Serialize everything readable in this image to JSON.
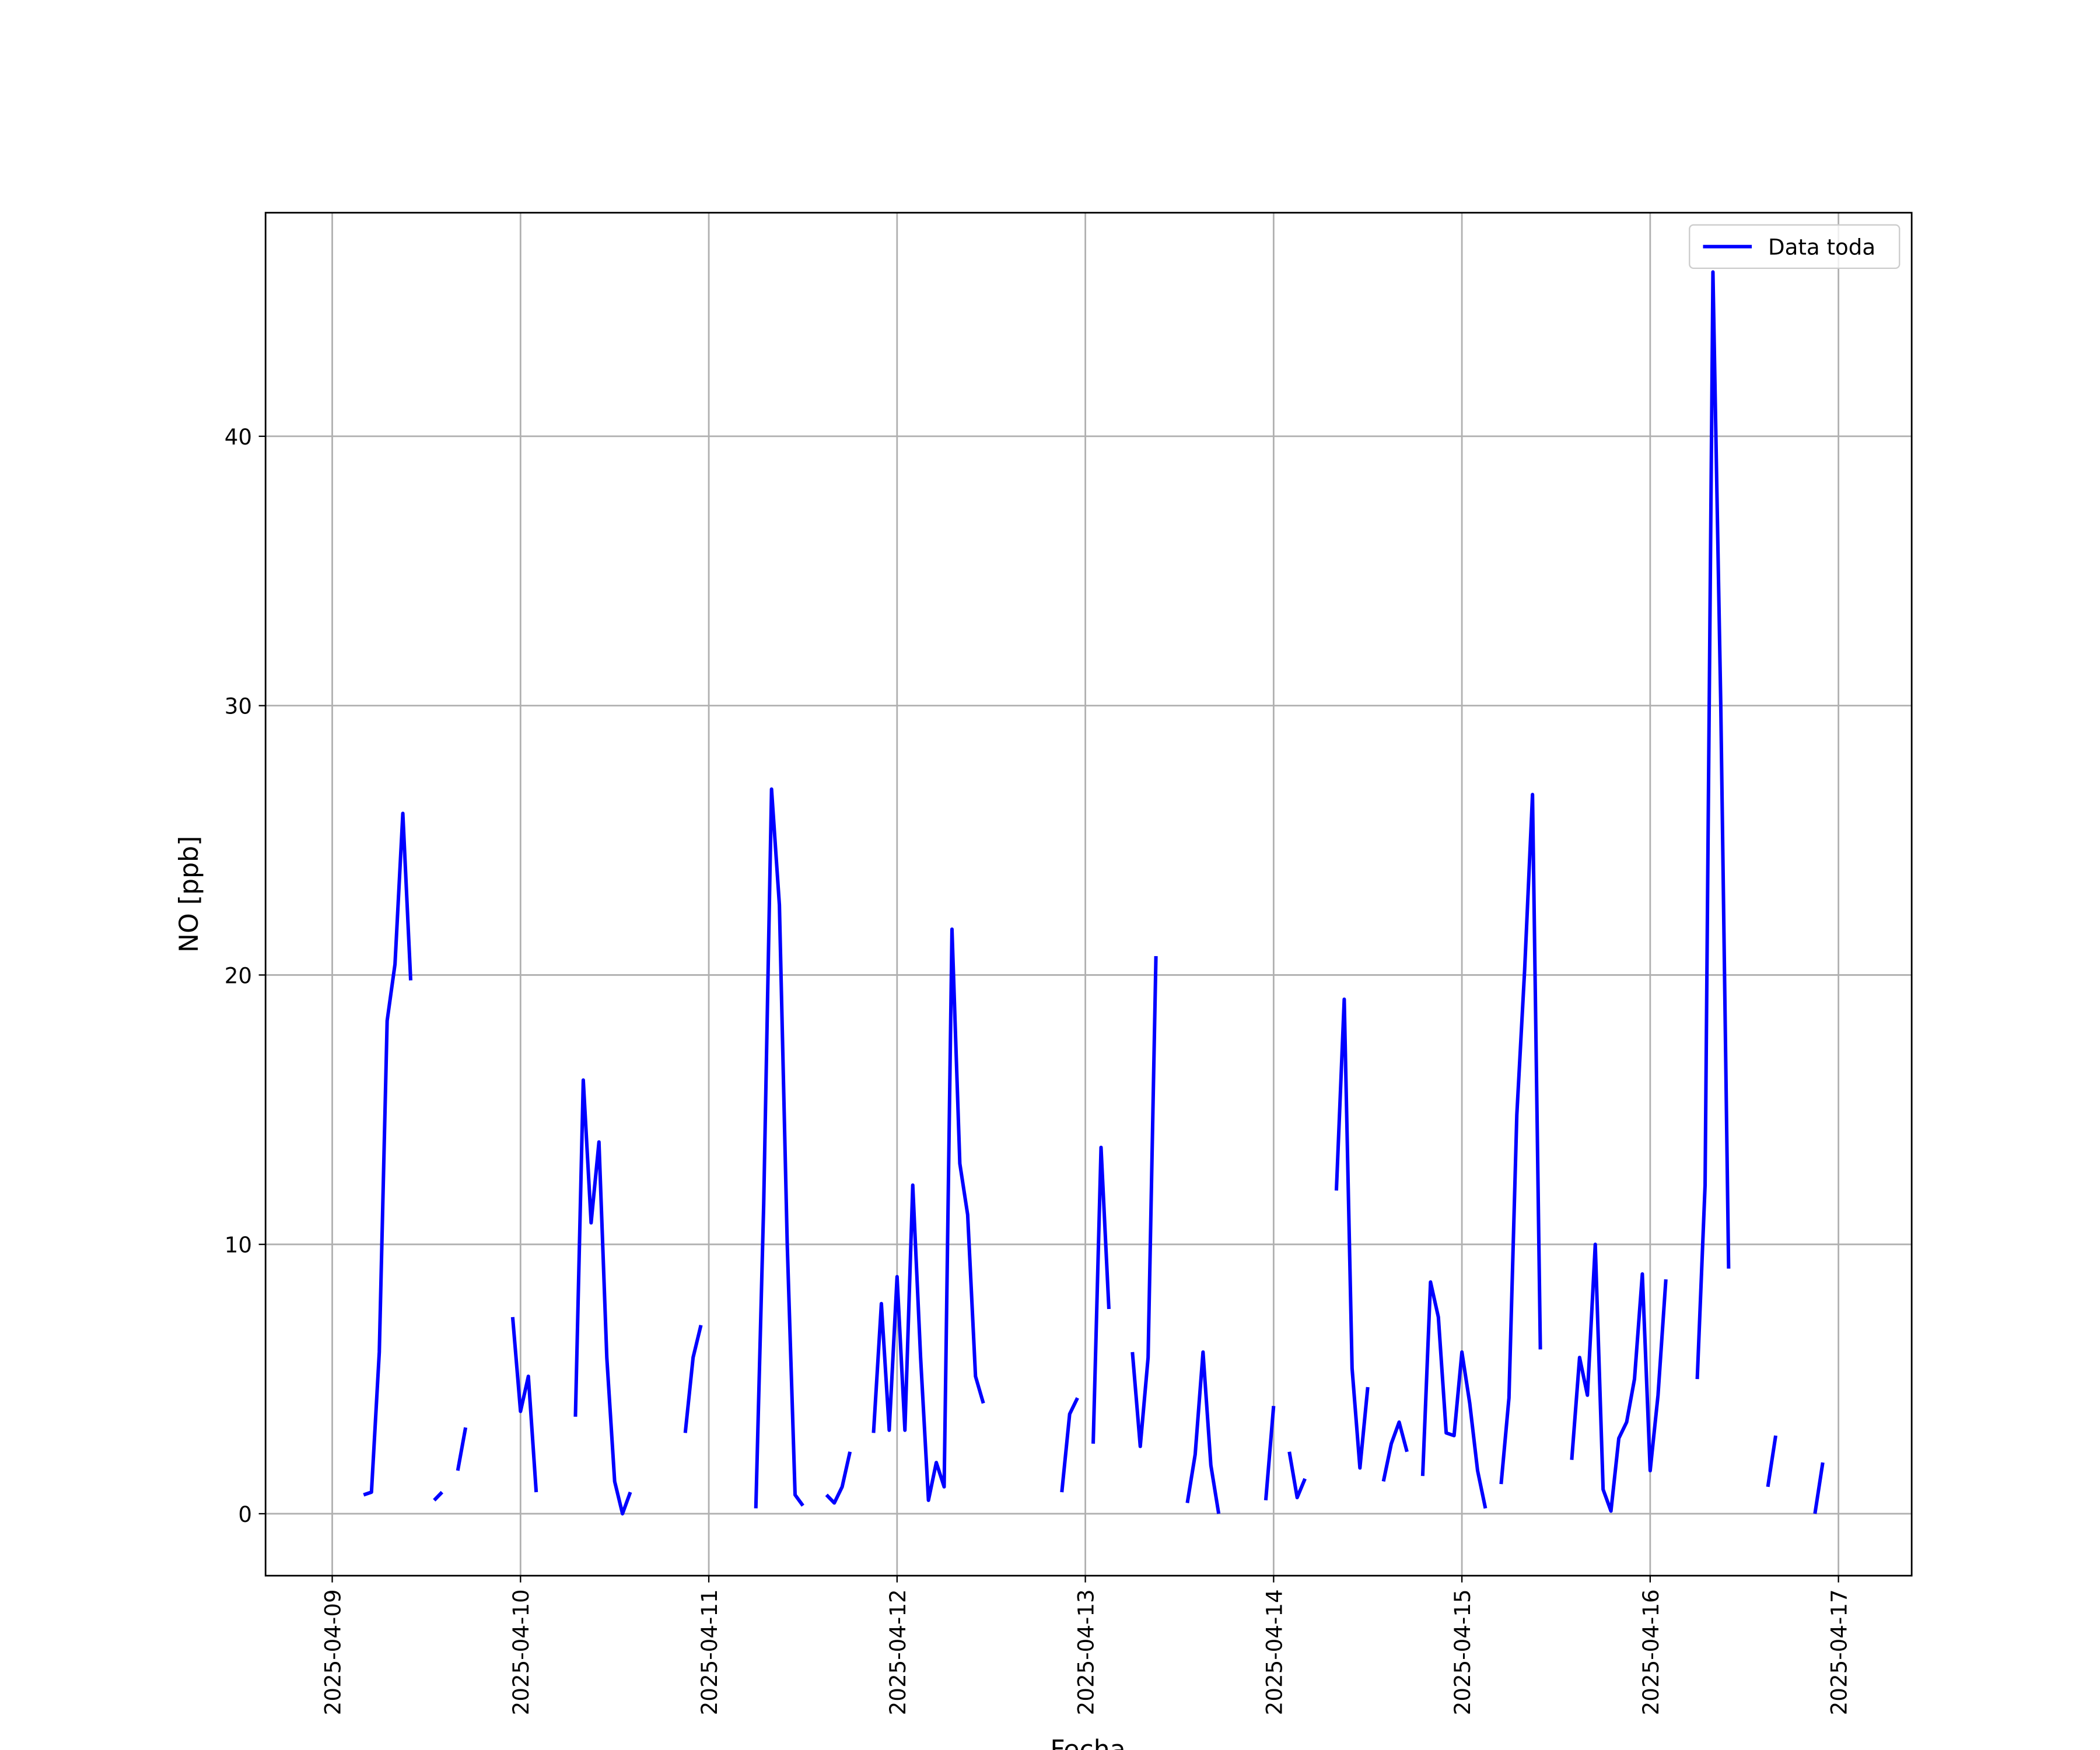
{
  "chart_data": {
    "type": "line",
    "xlabel": "Fecha",
    "ylabel": "NO [ppb]",
    "x": [
      "2025-04-09 04:00",
      "2025-04-09 05:00",
      "2025-04-09 06:00",
      "2025-04-09 07:00",
      "2025-04-09 08:00",
      "2025-04-09 09:00",
      "2025-04-09 10:00",
      "2025-04-09 11:00",
      "2025-04-09 13:00",
      "2025-04-09 14:00",
      "2025-04-09 15:00",
      "2025-04-09 16:00",
      "2025-04-09 17:00",
      "2025-04-09 18:00",
      "2025-04-09 23:00",
      "2025-04-10 00:00",
      "2025-04-10 01:00",
      "2025-04-10 02:00",
      "2025-04-10 03:00",
      "2025-04-10 07:00",
      "2025-04-10 08:00",
      "2025-04-10 09:00",
      "2025-04-10 10:00",
      "2025-04-10 11:00",
      "2025-04-10 12:00",
      "2025-04-10 13:00",
      "2025-04-10 14:00",
      "2025-04-10 15:00",
      "2025-04-10 21:00",
      "2025-04-10 22:00",
      "2025-04-10 23:00",
      "2025-04-11 00:00",
      "2025-04-11 06:00",
      "2025-04-11 07:00",
      "2025-04-11 08:00",
      "2025-04-11 09:00",
      "2025-04-11 10:00",
      "2025-04-11 11:00",
      "2025-04-11 12:00",
      "2025-04-11 13:00",
      "2025-04-11 15:00",
      "2025-04-11 16:00",
      "2025-04-11 17:00",
      "2025-04-11 18:00",
      "2025-04-11 19:00",
      "2025-04-11 21:00",
      "2025-04-11 22:00",
      "2025-04-11 23:00",
      "2025-04-12 00:00",
      "2025-04-12 01:00",
      "2025-04-12 02:00",
      "2025-04-12 03:00",
      "2025-04-12 04:00",
      "2025-04-12 05:00",
      "2025-04-12 06:00",
      "2025-04-12 07:00",
      "2025-04-12 08:00",
      "2025-04-12 09:00",
      "2025-04-12 10:00",
      "2025-04-12 11:00",
      "2025-04-12 12:00",
      "2025-04-12 21:00",
      "2025-04-12 22:00",
      "2025-04-12 23:00",
      "2025-04-13 00:00",
      "2025-04-13 01:00",
      "2025-04-13 02:00",
      "2025-04-13 03:00",
      "2025-04-13 04:00",
      "2025-04-13 06:00",
      "2025-04-13 07:00",
      "2025-04-13 08:00",
      "2025-04-13 09:00",
      "2025-04-13 10:00",
      "2025-04-13 13:00",
      "2025-04-13 14:00",
      "2025-04-13 15:00",
      "2025-04-13 16:00",
      "2025-04-13 17:00",
      "2025-04-13 18:00",
      "2025-04-13 23:00",
      "2025-04-14 00:00",
      "2025-04-14 01:00",
      "2025-04-14 02:00",
      "2025-04-14 03:00",
      "2025-04-14 04:00",
      "2025-04-14 05:00",
      "2025-04-14 08:00",
      "2025-04-14 09:00",
      "2025-04-14 10:00",
      "2025-04-14 11:00",
      "2025-04-14 12:00",
      "2025-04-14 13:00",
      "2025-04-14 14:00",
      "2025-04-14 15:00",
      "2025-04-14 16:00",
      "2025-04-14 17:00",
      "2025-04-14 18:00",
      "2025-04-14 19:00",
      "2025-04-14 20:00",
      "2025-04-14 21:00",
      "2025-04-14 22:00",
      "2025-04-14 23:00",
      "2025-04-15 00:00",
      "2025-04-15 01:00",
      "2025-04-15 02:00",
      "2025-04-15 03:00",
      "2025-04-15 04:00",
      "2025-04-15 05:00",
      "2025-04-15 06:00",
      "2025-04-15 07:00",
      "2025-04-15 08:00",
      "2025-04-15 09:00",
      "2025-04-15 10:00",
      "2025-04-15 11:00",
      "2025-04-15 14:00",
      "2025-04-15 15:00",
      "2025-04-15 16:00",
      "2025-04-15 17:00",
      "2025-04-15 18:00",
      "2025-04-15 19:00",
      "2025-04-15 20:00",
      "2025-04-15 21:00",
      "2025-04-15 22:00",
      "2025-04-15 23:00",
      "2025-04-16 00:00",
      "2025-04-16 01:00",
      "2025-04-16 02:00",
      "2025-04-16 03:00",
      "2025-04-16 06:00",
      "2025-04-16 07:00",
      "2025-04-16 08:00",
      "2025-04-16 09:00",
      "2025-04-16 10:00",
      "2025-04-16 11:00",
      "2025-04-16 15:00",
      "2025-04-16 16:00",
      "2025-04-16 17:00",
      "2025-04-16 21:00",
      "2025-04-16 22:00"
    ],
    "series": [
      {
        "name": "Data toda",
        "color": "#0000ff",
        "values": [
          0.7,
          0.8,
          6.0,
          18.3,
          20.4,
          26.0,
          19.8,
          null,
          0.5,
          0.8,
          null,
          1.6,
          3.2,
          null,
          7.3,
          3.8,
          5.1,
          0.8,
          null,
          3.6,
          16.1,
          10.8,
          13.8,
          5.8,
          1.2,
          0.0,
          0.8,
          null,
          3.0,
          5.8,
          7.0,
          null,
          0.2,
          11.5,
          26.9,
          22.6,
          10.0,
          0.7,
          0.3,
          null,
          0.7,
          0.4,
          1.0,
          2.3,
          null,
          3.0,
          7.8,
          3.1,
          8.8,
          3.1,
          12.2,
          5.8,
          0.5,
          1.9,
          1.0,
          21.7,
          13.0,
          11.1,
          5.1,
          4.1,
          null,
          0.8,
          3.7,
          4.3,
          null,
          2.6,
          13.6,
          7.6,
          null,
          6.0,
          2.5,
          5.8,
          20.7,
          null,
          0.4,
          2.2,
          6.0,
          1.8,
          0.0,
          null,
          0.5,
          4.0,
          null,
          2.3,
          0.6,
          1.3,
          null,
          12.0,
          19.1,
          5.4,
          1.7,
          4.7,
          null,
          1.2,
          2.6,
          3.4,
          2.3,
          null,
          1.4,
          8.6,
          7.3,
          3.0,
          2.9,
          6.0,
          4.1,
          1.6,
          0.2,
          null,
          1.1,
          4.3,
          14.8,
          20.2,
          26.7,
          6.1,
          null,
          2.0,
          5.8,
          4.4,
          10.0,
          0.9,
          0.1,
          2.8,
          3.4,
          5.0,
          8.9,
          1.6,
          4.4,
          8.7,
          null,
          5.0,
          12.2,
          46.1,
          30.0,
          9.1,
          null,
          1.0,
          2.9,
          null,
          0.0,
          1.9
        ]
      }
    ],
    "xlim": [
      "2025-04-08 15:30",
      "2025-04-17 09:20"
    ],
    "xticks": [
      "2025-04-09",
      "2025-04-10",
      "2025-04-11",
      "2025-04-12",
      "2025-04-13",
      "2025-04-14",
      "2025-04-15",
      "2025-04-16",
      "2025-04-17"
    ],
    "ylim": [
      -2.3,
      48.3
    ],
    "yticks": [
      0,
      10,
      20,
      30,
      40
    ],
    "grid": true,
    "legend": "upper right"
  }
}
